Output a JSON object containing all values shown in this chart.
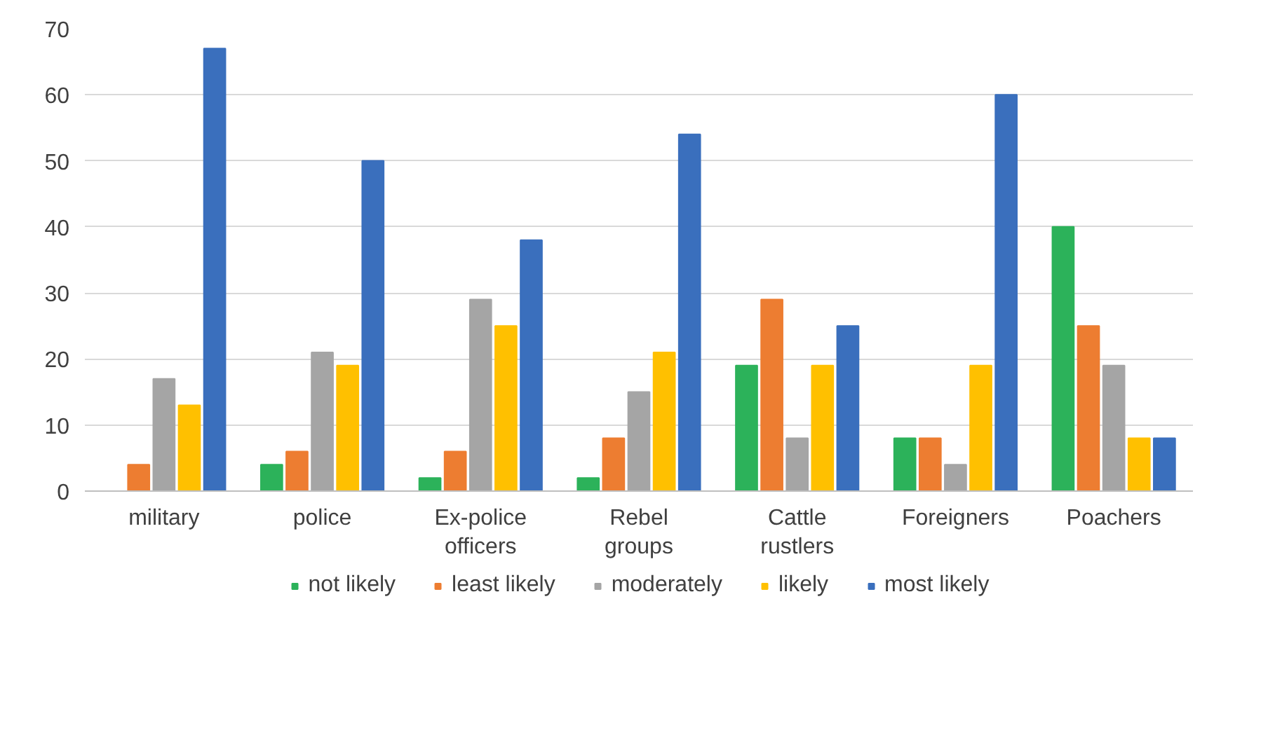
{
  "chart_data": {
    "type": "bar",
    "categories": [
      "military",
      "police",
      "Ex-police\nofficers",
      "Rebel\ngroups",
      "Cattle\nrustlers",
      "Foreigners",
      "Poachers"
    ],
    "series": [
      {
        "name": "not likely",
        "color": "#2cb25a",
        "values": [
          0,
          4,
          2,
          2,
          19,
          8,
          40
        ]
      },
      {
        "name": "least likely",
        "color": "#ed7d31",
        "values": [
          4,
          6,
          6,
          8,
          29,
          8,
          25
        ]
      },
      {
        "name": "moderately",
        "color": "#a5a5a5",
        "values": [
          17,
          21,
          29,
          15,
          8,
          4,
          19
        ]
      },
      {
        "name": "likely",
        "color": "#ffc000",
        "values": [
          13,
          19,
          25,
          21,
          19,
          19,
          8
        ]
      },
      {
        "name": "most likely",
        "color": "#3a6fbd",
        "values": [
          67,
          50,
          38,
          54,
          25,
          60,
          8
        ]
      }
    ],
    "ylim": [
      0,
      70
    ],
    "yticks": [
      0,
      10,
      20,
      30,
      40,
      50,
      60,
      70
    ],
    "grid": "y",
    "legend": "bottom"
  }
}
